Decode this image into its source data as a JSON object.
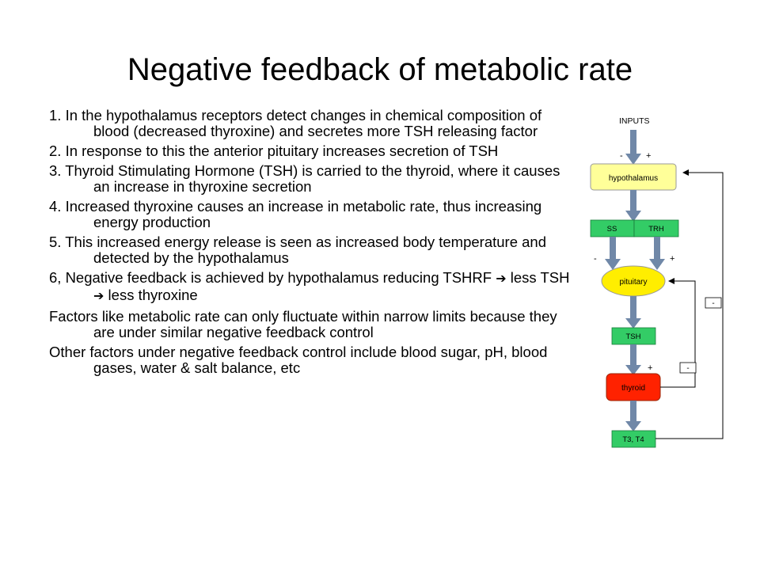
{
  "slide": {
    "title": "Negative feedback of metabolic rate"
  },
  "points": [
    {
      "pre": "1. In the hypothalamus receptors detect changes in chemical composition of blood (decreased thyroxine) and secretes more TSH releasing factor"
    },
    {
      "pre": "2. In response to this the anterior pituitary increases secretion of TSH"
    },
    {
      "pre": "3. Thyroid Stimulating Hormone (TSH) is carried to the thyroid, where it causes an increase in thyroxine secretion"
    },
    {
      "pre": "4. Increased thyroxine causes an increase in metabolic rate, thus increasing energy production"
    },
    {
      "pre": "5. This increased energy release is seen as increased body temperature and detected by the hypothalamus"
    },
    {
      "pre": "6, Negative feedback is achieved by hypothalamus reducing TSHRF ",
      "arrow1": "➔",
      "mid": " less TSH ",
      "arrow2": "➔",
      "post": " less thyroxine"
    },
    {
      "pre": "Factors like metabolic rate can only fluctuate within narrow limits because they are under similar negative feedback control"
    },
    {
      "pre": "Other factors under negative feedback control include blood sugar, pH, blood gases, water & salt balance, etc"
    }
  ],
  "diagram": {
    "inputs_label": "INPUTS",
    "input_minus": "-",
    "input_plus": "+",
    "hypothalamus_label": "hypothalamus",
    "ss_label": "SS",
    "trh_label": "TRH",
    "ss_sign": "-",
    "trh_sign": "+",
    "pituitary_label": "pituitary",
    "tsh_label": "TSH",
    "tsh_sign": "+",
    "thyroid_label": "thyroid",
    "t3t4_label": "T3, T4",
    "outer_feedback_sign": "-",
    "inner_feedback_sign": "-",
    "colors": {
      "hypothalamus": "#ffff99",
      "releasing": "#33cc66",
      "pituitary": "#ffee00",
      "tsh": "#33cc66",
      "thyroid": "#ff2200",
      "t3t4": "#33cc66",
      "arrow": "#7088a8"
    }
  }
}
